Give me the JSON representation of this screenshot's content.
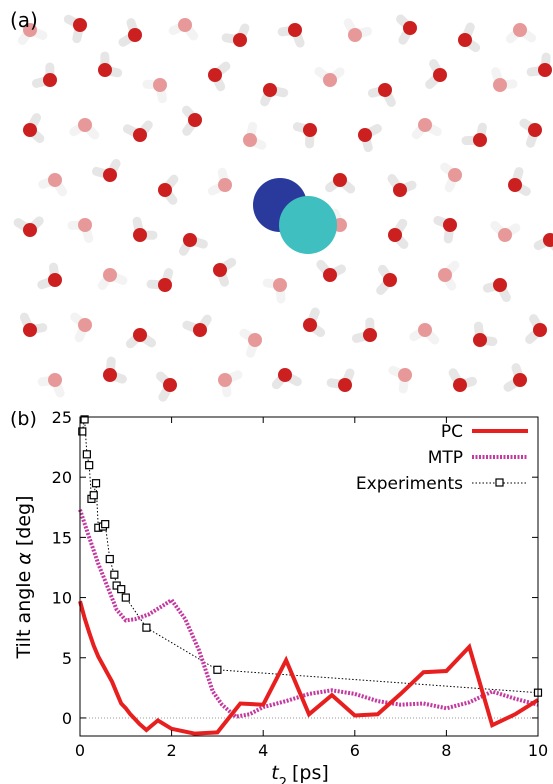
{
  "panel_a": {
    "label": "(a)",
    "scene": {
      "background": "#ffffff",
      "oxygen_color": "#cc1f1f",
      "hydrogen_color": "#e6e6e6",
      "solute_colors": [
        "#2a3a9c",
        "#3fbfbf"
      ],
      "molecules": [
        [
          20,
          20,
          0.4
        ],
        [
          70,
          15,
          1.8
        ],
        [
          125,
          25,
          2.6
        ],
        [
          175,
          15,
          0.9
        ],
        [
          230,
          30,
          3.3
        ],
        [
          285,
          20,
          1.2
        ],
        [
          345,
          25,
          4.2
        ],
        [
          400,
          18,
          2.1
        ],
        [
          455,
          30,
          5.1
        ],
        [
          510,
          20,
          0.6
        ],
        [
          40,
          70,
          2.9
        ],
        [
          95,
          60,
          4.7
        ],
        [
          150,
          75,
          1.4
        ],
        [
          205,
          65,
          5.6
        ],
        [
          260,
          80,
          0.2
        ],
        [
          320,
          70,
          3.8
        ],
        [
          375,
          80,
          1.1
        ],
        [
          430,
          65,
          2.4
        ],
        [
          490,
          75,
          4.4
        ],
        [
          535,
          60,
          3.0
        ],
        [
          20,
          120,
          5.2
        ],
        [
          75,
          115,
          0.8
        ],
        [
          130,
          125,
          3.6
        ],
        [
          185,
          110,
          2.2
        ],
        [
          240,
          130,
          4.9
        ],
        [
          300,
          120,
          1.6
        ],
        [
          355,
          125,
          5.8
        ],
        [
          415,
          115,
          0.5
        ],
        [
          470,
          130,
          3.1
        ],
        [
          525,
          120,
          1.9
        ],
        [
          45,
          170,
          1.0
        ],
        [
          100,
          165,
          3.4
        ],
        [
          155,
          180,
          5.4
        ],
        [
          215,
          175,
          2.7
        ],
        [
          330,
          170,
          0.7
        ],
        [
          390,
          180,
          4.1
        ],
        [
          445,
          165,
          2.0
        ],
        [
          505,
          175,
          5.0
        ],
        [
          20,
          220,
          3.7
        ],
        [
          75,
          215,
          1.3
        ],
        [
          130,
          225,
          4.5
        ],
        [
          180,
          230,
          0.3
        ],
        [
          330,
          215,
          2.5
        ],
        [
          385,
          225,
          5.3
        ],
        [
          440,
          215,
          1.7
        ],
        [
          495,
          225,
          3.9
        ],
        [
          540,
          230,
          0.9
        ],
        [
          45,
          270,
          2.8
        ],
        [
          100,
          265,
          0.4
        ],
        [
          155,
          275,
          3.2
        ],
        [
          210,
          260,
          5.7
        ],
        [
          270,
          275,
          1.5
        ],
        [
          320,
          265,
          4.0
        ],
        [
          380,
          270,
          2.3
        ],
        [
          435,
          265,
          5.5
        ],
        [
          490,
          275,
          1.1
        ],
        [
          20,
          320,
          4.3
        ],
        [
          75,
          315,
          2.0
        ],
        [
          130,
          325,
          0.6
        ],
        [
          190,
          320,
          3.5
        ],
        [
          245,
          330,
          1.9
        ],
        [
          300,
          315,
          5.1
        ],
        [
          360,
          325,
          2.9
        ],
        [
          415,
          320,
          0.8
        ],
        [
          470,
          330,
          4.6
        ],
        [
          530,
          320,
          2.4
        ],
        [
          45,
          370,
          1.2
        ],
        [
          100,
          365,
          4.8
        ],
        [
          160,
          375,
          2.1
        ],
        [
          215,
          370,
          5.9
        ],
        [
          275,
          365,
          0.5
        ],
        [
          335,
          375,
          3.3
        ],
        [
          395,
          365,
          1.7
        ],
        [
          450,
          375,
          4.2
        ],
        [
          510,
          370,
          2.6
        ]
      ]
    }
  },
  "panel_b": {
    "label": "(b)",
    "xlabel_var": "t",
    "xlabel_sub": "2",
    "xlabel_unit": "[ps]",
    "ylabel_text": "Tilt angle ",
    "ylabel_var": "α",
    "ylabel_unit": " [deg]",
    "legend": {
      "pc": "PC",
      "mtp": "MTP",
      "exp": "Experiments"
    }
  },
  "chart_data": {
    "type": "line",
    "xlim": [
      0,
      10
    ],
    "ylim": [
      -1.5,
      25
    ],
    "xticks": [
      0,
      2,
      4,
      6,
      8,
      10
    ],
    "yticks": [
      0,
      5,
      10,
      15,
      20,
      25
    ],
    "xlabel": "t2 [ps]",
    "ylabel": "Tilt angle α [deg]",
    "legend_position": "top-right",
    "zero_line": true,
    "series": [
      {
        "name": "PC",
        "color": "#e81f1f",
        "style": "solid",
        "x": [
          0,
          0.1,
          0.2,
          0.3,
          0.4,
          0.5,
          0.6,
          0.7,
          0.8,
          0.9,
          1.0,
          1.1,
          1.2,
          1.3,
          1.45,
          1.7,
          2.0,
          2.5,
          3.0,
          3.5,
          4.0,
          4.5,
          5.0,
          5.5,
          6.0,
          6.5,
          7.0,
          7.5,
          8.0,
          8.5,
          9.0,
          9.5,
          10.0
        ],
        "y": [
          9.7,
          8.3,
          7.1,
          6.0,
          5.1,
          4.4,
          3.7,
          3.0,
          2.1,
          1.2,
          0.8,
          0.3,
          -0.1,
          -0.5,
          -1.0,
          -0.2,
          -0.9,
          -1.3,
          -1.2,
          1.2,
          1.1,
          4.8,
          0.3,
          1.9,
          0.2,
          0.3,
          2.0,
          3.8,
          3.9,
          5.9,
          -0.6,
          0.3,
          1.5
        ]
      },
      {
        "name": "MTP",
        "color": "#c4389f",
        "style": "dashed",
        "x": [
          0,
          0.2,
          0.4,
          0.6,
          0.8,
          1.0,
          1.2,
          1.5,
          1.8,
          2.0,
          2.3,
          2.6,
          2.9,
          3.1,
          3.4,
          3.7,
          4.0,
          4.5,
          5.0,
          5.5,
          6.0,
          6.5,
          7.0,
          7.5,
          8.0,
          8.5,
          9.0,
          9.5,
          10.0
        ],
        "y": [
          17.3,
          15.0,
          12.8,
          10.9,
          9.0,
          8.1,
          8.2,
          8.6,
          9.3,
          9.8,
          8.2,
          5.6,
          2.2,
          1.1,
          0.1,
          0.3,
          0.9,
          1.4,
          2.0,
          2.3,
          2.0,
          1.4,
          1.1,
          1.2,
          0.8,
          1.3,
          2.2,
          1.6,
          1.1
        ]
      },
      {
        "name": "Experiments",
        "color": "#000000",
        "style": "dotted",
        "marker": "square",
        "x": [
          0.05,
          0.1,
          0.15,
          0.2,
          0.25,
          0.3,
          0.35,
          0.4,
          0.5,
          0.55,
          0.65,
          0.75,
          0.8,
          0.9,
          1.0,
          1.45,
          3.0,
          10.0
        ],
        "y": [
          23.8,
          24.8,
          21.9,
          21.0,
          18.2,
          18.5,
          19.5,
          15.8,
          15.9,
          16.1,
          13.2,
          11.9,
          11.0,
          10.7,
          10.0,
          7.5,
          4.0,
          2.1
        ]
      }
    ]
  }
}
